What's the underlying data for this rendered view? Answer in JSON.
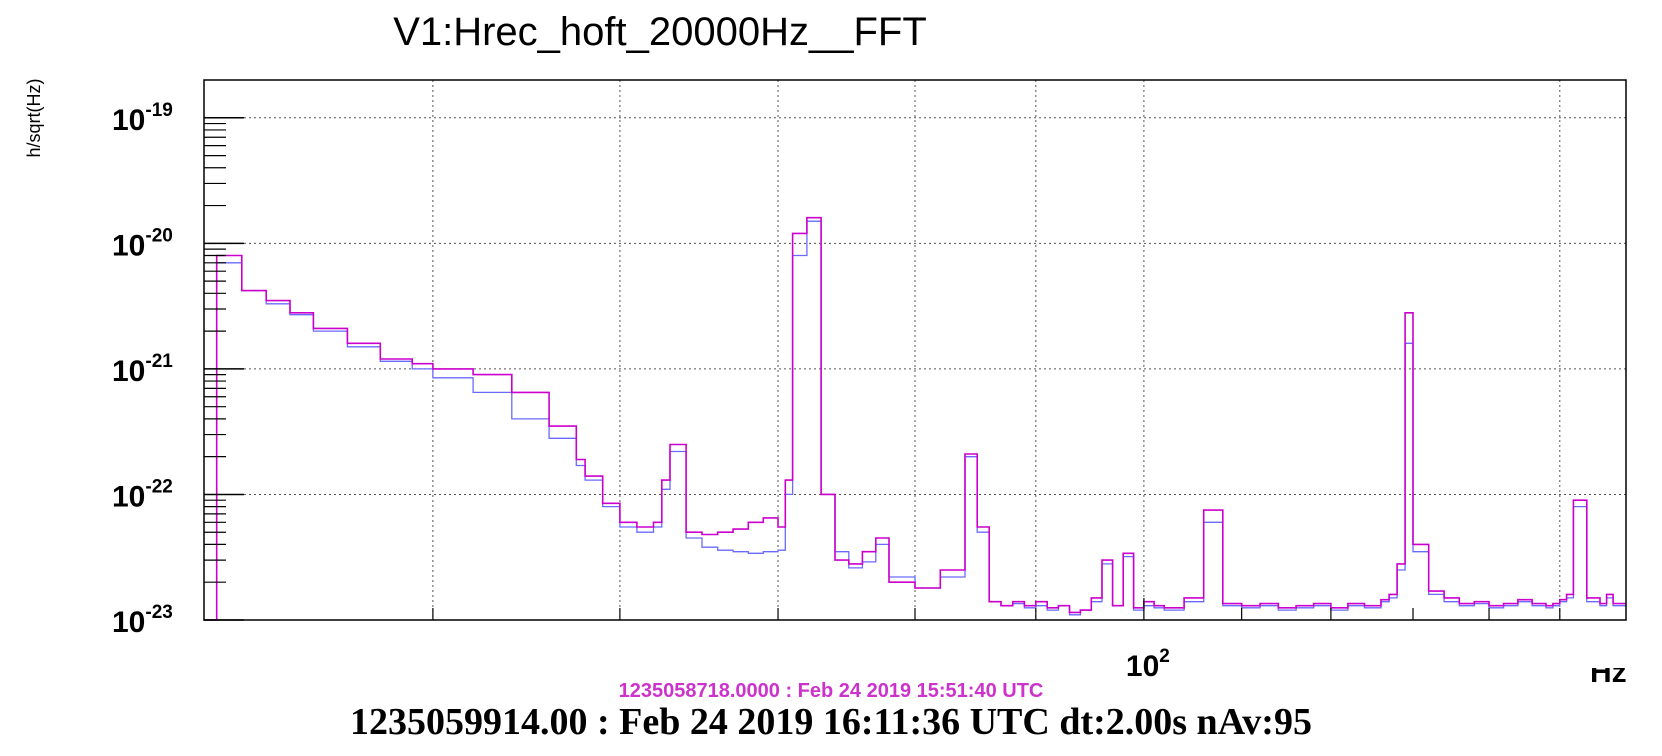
{
  "chart_data": {
    "type": "line",
    "title": "V1:Hrec_hoft_20000Hz__FFT",
    "ylabel": "h/sqrt(Hz)",
    "xlabel": "Hz",
    "x_scale": "log",
    "y_scale": "log",
    "xlim": [
      40,
      160
    ],
    "ylim": [
      1e-23,
      2e-19
    ],
    "grid": true,
    "y_ticks": [
      {
        "base": "10",
        "exp": "-19",
        "value": 1e-19
      },
      {
        "base": "10",
        "exp": "-20",
        "value": 1e-20
      },
      {
        "base": "10",
        "exp": "-21",
        "value": 1e-21
      },
      {
        "base": "10",
        "exp": "-22",
        "value": 1e-22
      },
      {
        "base": "10",
        "exp": "-23",
        "value": 1e-23
      }
    ],
    "x_ticks": [
      {
        "base": "10",
        "exp": "2",
        "value": 100
      }
    ],
    "series": [
      {
        "color": "#6a6aff",
        "x": [
          40,
          40.5,
          41.5,
          42.5,
          43.5,
          44.5,
          46,
          47.5,
          49,
          50,
          52,
          54,
          56,
          57.5,
          58,
          59,
          60,
          61,
          62,
          62.5,
          63,
          64,
          65,
          66,
          67,
          68,
          69,
          70,
          70.5,
          71,
          72,
          73,
          74,
          75,
          76,
          77,
          78,
          80,
          82,
          84,
          85,
          86,
          87,
          88,
          89,
          90,
          91,
          92,
          93,
          94,
          95,
          96,
          97,
          98,
          99,
          100,
          101,
          102,
          104,
          106,
          108,
          110,
          112,
          114,
          116,
          118,
          120,
          122,
          124,
          126,
          127,
          128,
          129,
          130,
          132,
          134,
          136,
          138,
          140,
          142,
          144,
          146,
          148,
          149,
          150,
          151,
          152,
          154,
          156,
          157,
          158
        ],
        "values": [
          1e-23,
          7e-21,
          4.2e-21,
          3.3e-21,
          2.7e-21,
          2e-21,
          1.5e-21,
          1.15e-21,
          1e-21,
          8.5e-22,
          6.5e-22,
          4e-22,
          2.8e-22,
          1.7e-22,
          1.3e-22,
          8e-23,
          5.5e-23,
          5e-23,
          5.5e-23,
          1.1e-22,
          2.2e-22,
          4.5e-23,
          3.8e-23,
          3.6e-23,
          3.5e-23,
          3.4e-23,
          3.5e-23,
          3.6e-23,
          1e-22,
          8e-21,
          1.5e-20,
          1e-22,
          3.5e-23,
          2.6e-23,
          2.9e-23,
          4e-23,
          2.2e-23,
          1.8e-23,
          2.2e-23,
          2e-22,
          5e-23,
          1.4e-23,
          1.3e-23,
          1.35e-23,
          1.25e-23,
          1.3e-23,
          1.2e-23,
          1.3e-23,
          1.1e-23,
          1.2e-23,
          1.4e-23,
          2.8e-23,
          1.3e-23,
          3.2e-23,
          1.2e-23,
          1.3e-23,
          1.25e-23,
          1.2e-23,
          1.4e-23,
          6e-23,
          1.3e-23,
          1.25e-23,
          1.3e-23,
          1.2e-23,
          1.25e-23,
          1.3e-23,
          1.2e-23,
          1.3e-23,
          1.25e-23,
          1.4e-23,
          1.5e-23,
          2.5e-23,
          1.6e-21,
          3.5e-23,
          1.6e-23,
          1.4e-23,
          1.3e-23,
          1.35e-23,
          1.25e-23,
          1.3e-23,
          1.4e-23,
          1.3e-23,
          1.25e-23,
          1.3e-23,
          1.4e-23,
          1.5e-23,
          8e-23,
          1.4e-23,
          1.3e-23,
          1.5e-23,
          1.3e-23
        ]
      },
      {
        "color": "#cc00cc",
        "x": [
          40,
          40.5,
          41.5,
          42.5,
          43.5,
          44.5,
          46,
          47.5,
          49,
          50,
          52,
          54,
          56,
          57.5,
          58,
          59,
          60,
          61,
          62,
          62.5,
          63,
          64,
          65,
          66,
          67,
          68,
          69,
          70,
          70.5,
          71,
          72,
          73,
          74,
          75,
          76,
          77,
          78,
          80,
          82,
          84,
          85,
          86,
          87,
          88,
          89,
          90,
          91,
          92,
          93,
          94,
          95,
          96,
          97,
          98,
          99,
          100,
          101,
          102,
          104,
          106,
          108,
          110,
          112,
          114,
          116,
          118,
          120,
          122,
          124,
          126,
          127,
          128,
          129,
          130,
          132,
          134,
          136,
          138,
          140,
          142,
          144,
          146,
          148,
          149,
          150,
          151,
          152,
          154,
          156,
          157,
          158
        ],
        "values": [
          1e-23,
          8e-21,
          4.2e-21,
          3.5e-21,
          2.8e-21,
          2.1e-21,
          1.6e-21,
          1.2e-21,
          1.1e-21,
          1e-21,
          9e-22,
          6.5e-22,
          3.5e-22,
          1.9e-22,
          1.4e-22,
          8.5e-23,
          6e-23,
          5.5e-23,
          6e-23,
          1.3e-22,
          2.5e-22,
          5e-23,
          4.8e-23,
          5e-23,
          5.3e-23,
          6e-23,
          6.5e-23,
          5.5e-23,
          1.3e-22,
          1.2e-20,
          1.6e-20,
          1e-22,
          3e-23,
          2.8e-23,
          3.5e-23,
          4.5e-23,
          2e-23,
          1.8e-23,
          2.5e-23,
          2.1e-22,
          5.5e-23,
          1.4e-23,
          1.3e-23,
          1.4e-23,
          1.3e-23,
          1.4e-23,
          1.25e-23,
          1.3e-23,
          1.15e-23,
          1.2e-23,
          1.5e-23,
          3e-23,
          1.3e-23,
          3.4e-23,
          1.25e-23,
          1.4e-23,
          1.3e-23,
          1.25e-23,
          1.5e-23,
          7.5e-23,
          1.35e-23,
          1.3e-23,
          1.35e-23,
          1.25e-23,
          1.3e-23,
          1.35e-23,
          1.25e-23,
          1.35e-23,
          1.3e-23,
          1.45e-23,
          1.6e-23,
          2.8e-23,
          2.8e-21,
          4e-23,
          1.7e-23,
          1.5e-23,
          1.35e-23,
          1.4e-23,
          1.3e-23,
          1.35e-23,
          1.45e-23,
          1.35e-23,
          1.3e-23,
          1.35e-23,
          1.45e-23,
          1.6e-23,
          9e-23,
          1.5e-23,
          1.35e-23,
          1.6e-23,
          1.35e-23
        ]
      }
    ]
  },
  "footer": {
    "reference_timestamp": "1235058718.0000 : Feb 24 2019 15:51:40 UTC",
    "reference_color": "#cc33cc",
    "main_timestamp": "1235059914.00 : Feb 24 2019 16:11:36 UTC dt:2.00s nAv:95"
  }
}
